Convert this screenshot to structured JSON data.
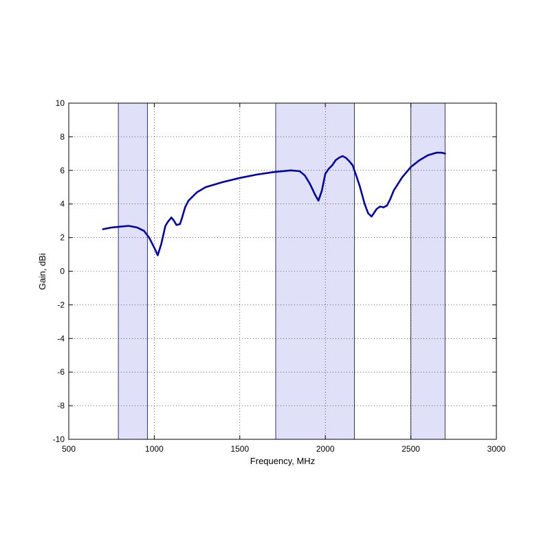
{
  "chart_data": {
    "type": "line",
    "xlabel": "Frequency, MHz",
    "ylabel": "Gain, dBi",
    "xlim": [
      500,
      3000
    ],
    "ylim": [
      -10,
      10
    ],
    "xticks": [
      500,
      1000,
      1500,
      2000,
      2500,
      3000
    ],
    "yticks": [
      -10,
      -8,
      -6,
      -4,
      -2,
      0,
      2,
      4,
      6,
      8,
      10
    ],
    "grid": true,
    "line_color": "#0000aa",
    "band_fill": "#e0e0f8",
    "band_edge": "#30307a",
    "bands": [
      {
        "start": 790,
        "end": 960
      },
      {
        "start": 1710,
        "end": 2170
      },
      {
        "start": 2500,
        "end": 2700
      }
    ],
    "series": [
      {
        "x": [
          700,
          750,
          800,
          850,
          900,
          940,
          970,
          1000,
          1020,
          1040,
          1065,
          1080,
          1100,
          1115,
          1130,
          1150,
          1160,
          1180,
          1200,
          1250,
          1300,
          1400,
          1500,
          1600,
          1700,
          1800,
          1850,
          1880,
          1910,
          1940,
          1960,
          1980,
          2000,
          2020,
          2040,
          2060,
          2080,
          2100,
          2120,
          2140,
          2160,
          2180,
          2200,
          2230,
          2250,
          2270,
          2280,
          2300,
          2320,
          2340,
          2360,
          2380,
          2400,
          2450,
          2500,
          2550,
          2600,
          2650,
          2680,
          2700
        ],
        "y": [
          2.5,
          2.6,
          2.65,
          2.7,
          2.6,
          2.4,
          2.0,
          1.4,
          0.95,
          1.6,
          2.7,
          2.95,
          3.2,
          3.0,
          2.75,
          2.8,
          3.1,
          3.8,
          4.2,
          4.7,
          5.0,
          5.3,
          5.55,
          5.75,
          5.9,
          6.0,
          5.95,
          5.7,
          5.2,
          4.55,
          4.2,
          4.8,
          5.8,
          6.1,
          6.3,
          6.6,
          6.75,
          6.85,
          6.75,
          6.55,
          6.3,
          5.7,
          5.1,
          4.0,
          3.45,
          3.25,
          3.4,
          3.7,
          3.85,
          3.8,
          3.9,
          4.3,
          4.8,
          5.6,
          6.2,
          6.6,
          6.9,
          7.05,
          7.05,
          7.0
        ]
      }
    ]
  }
}
